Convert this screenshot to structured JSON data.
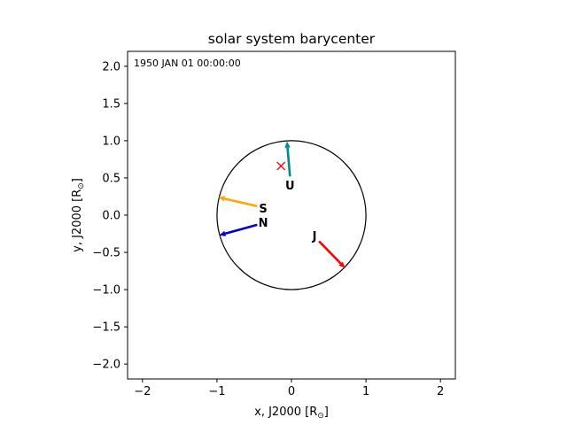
{
  "chart_data": {
    "type": "scatter",
    "title": "solar system barycenter",
    "xlabel": "x, J2000 [R",
    "ylabel": "y, J2000 [R",
    "unit_symbol": "⊙",
    "xlim": [
      -2.2,
      2.2
    ],
    "ylim": [
      -2.2,
      2.2
    ],
    "x_ticks": [
      -2,
      -1,
      0,
      1,
      2
    ],
    "y_ticks": [
      -2.0,
      -1.5,
      -1.0,
      -0.5,
      0.0,
      0.5,
      1.0,
      1.5,
      2.0
    ],
    "x_tick_labels": [
      "−2",
      "−1",
      "0",
      "1",
      "2"
    ],
    "y_tick_labels": [
      "−2.0",
      "−1.5",
      "−1.0",
      "−0.5",
      "0.0",
      "0.5",
      "1.0",
      "1.5",
      "2.0"
    ],
    "grid": false,
    "timestamp": "1950 JAN 01 00:00:00",
    "sun_circle": {
      "center": [
        0,
        0
      ],
      "radius": 1.0,
      "color": "#000000"
    },
    "barycenter": {
      "x": -0.14,
      "y": 0.66,
      "color": "#ff0000",
      "marker": "x"
    },
    "planets": [
      {
        "label": "J",
        "tail": [
          0.37,
          -0.35
        ],
        "head": [
          0.72,
          -0.71
        ],
        "label_pos": [
          0.31,
          -0.28
        ],
        "color": "#ff0000"
      },
      {
        "label": "S",
        "tail": [
          -0.46,
          0.12
        ],
        "head": [
          -0.98,
          0.24
        ],
        "label_pos": [
          -0.38,
          0.09
        ],
        "color": "#ffa500"
      },
      {
        "label": "U",
        "tail": [
          -0.02,
          0.52
        ],
        "head": [
          -0.06,
          0.99
        ],
        "label_pos": [
          -0.02,
          0.4
        ],
        "color": "#008b8b"
      },
      {
        "label": "N",
        "tail": [
          -0.46,
          -0.13
        ],
        "head": [
          -0.97,
          -0.27
        ],
        "label_pos": [
          -0.38,
          -0.1
        ],
        "color": "#0000cd"
      }
    ]
  }
}
